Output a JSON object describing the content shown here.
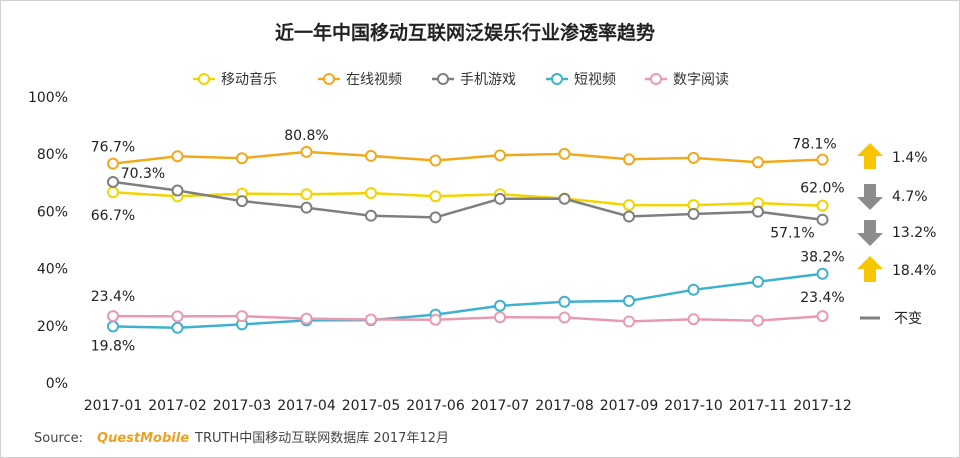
{
  "title": "近一年中国移动互联网泛娱乐行业渗透率趋势",
  "source": {
    "label": "Source:",
    "brand": "QuestMobile",
    "text": "TRUTH中国移动互联网数据库 2017年12月"
  },
  "chart_data": {
    "type": "line",
    "title": "近一年中国移动互联网泛娱乐行业渗透率趋势",
    "xlabel": "",
    "ylabel": "",
    "ylim": [
      0,
      100
    ],
    "y_ticks": [
      "0%",
      "20%",
      "40%",
      "60%",
      "80%",
      "100%"
    ],
    "categories": [
      "2017-01",
      "2017-02",
      "2017-03",
      "2017-04",
      "2017-05",
      "2017-06",
      "2017-07",
      "2017-08",
      "2017-09",
      "2017-10",
      "2017-11",
      "2017-12"
    ],
    "legend_position": "top",
    "grid": false,
    "series": [
      {
        "name": "移动音乐",
        "color": "#f2d400",
        "values": [
          66.7,
          65.3,
          66.2,
          66.0,
          66.4,
          65.3,
          66.0,
          64.5,
          62.2,
          62.2,
          62.9,
          62.0
        ]
      },
      {
        "name": "在线视频",
        "color": "#f0a91c",
        "values": [
          76.7,
          79.3,
          78.6,
          80.8,
          79.4,
          77.8,
          79.6,
          80.1,
          78.2,
          78.7,
          77.2,
          78.1
        ]
      },
      {
        "name": "手机游戏",
        "color": "#7f7f7f",
        "values": [
          70.3,
          67.3,
          63.6,
          61.3,
          58.5,
          57.9,
          64.4,
          64.4,
          58.2,
          59.1,
          59.9,
          57.1
        ]
      },
      {
        "name": "短视频",
        "color": "#3fb1ce",
        "values": [
          19.8,
          19.3,
          20.5,
          21.9,
          22.0,
          23.9,
          27.0,
          28.4,
          28.7,
          32.6,
          35.4,
          38.2
        ]
      },
      {
        "name": "数字阅读",
        "color": "#e89bb0",
        "values": [
          23.4,
          23.3,
          23.4,
          22.5,
          22.2,
          22.1,
          23.0,
          22.9,
          21.5,
          22.3,
          21.8,
          23.4
        ]
      }
    ],
    "data_labels": [
      {
        "series": "在线视频",
        "index": 0,
        "text": "76.7%"
      },
      {
        "series": "在线视频",
        "index": 3,
        "text": "80.8%"
      },
      {
        "series": "在线视频",
        "index": 11,
        "text": "78.1%"
      },
      {
        "series": "手机游戏",
        "index": 0,
        "text": "70.3%"
      },
      {
        "series": "移动音乐",
        "index": 0,
        "text": "66.7%"
      },
      {
        "series": "移动音乐",
        "index": 11,
        "text": "62.0%"
      },
      {
        "series": "手机游戏",
        "index": 11,
        "text": "57.1%"
      },
      {
        "series": "短视频",
        "index": 11,
        "text": "38.2%"
      },
      {
        "series": "数字阅读",
        "index": 0,
        "text": "23.4%"
      },
      {
        "series": "数字阅读",
        "index": 11,
        "text": "23.4%"
      },
      {
        "series": "短视频",
        "index": 0,
        "text": "19.8%"
      }
    ],
    "annotations": [
      {
        "series": "在线视频",
        "direction": "up",
        "text": "1.4%",
        "color": "#f7c600"
      },
      {
        "series": "移动音乐",
        "direction": "down",
        "text": "4.7%",
        "color": "#8c8c8c"
      },
      {
        "series": "手机游戏",
        "direction": "down",
        "text": "13.2%",
        "color": "#8c8c8c"
      },
      {
        "series": "短视频",
        "direction": "up",
        "text": "18.4%",
        "color": "#f7c600"
      },
      {
        "series": "数字阅读",
        "direction": "flat",
        "text": "不变",
        "color": "#7f7f7f"
      }
    ]
  }
}
